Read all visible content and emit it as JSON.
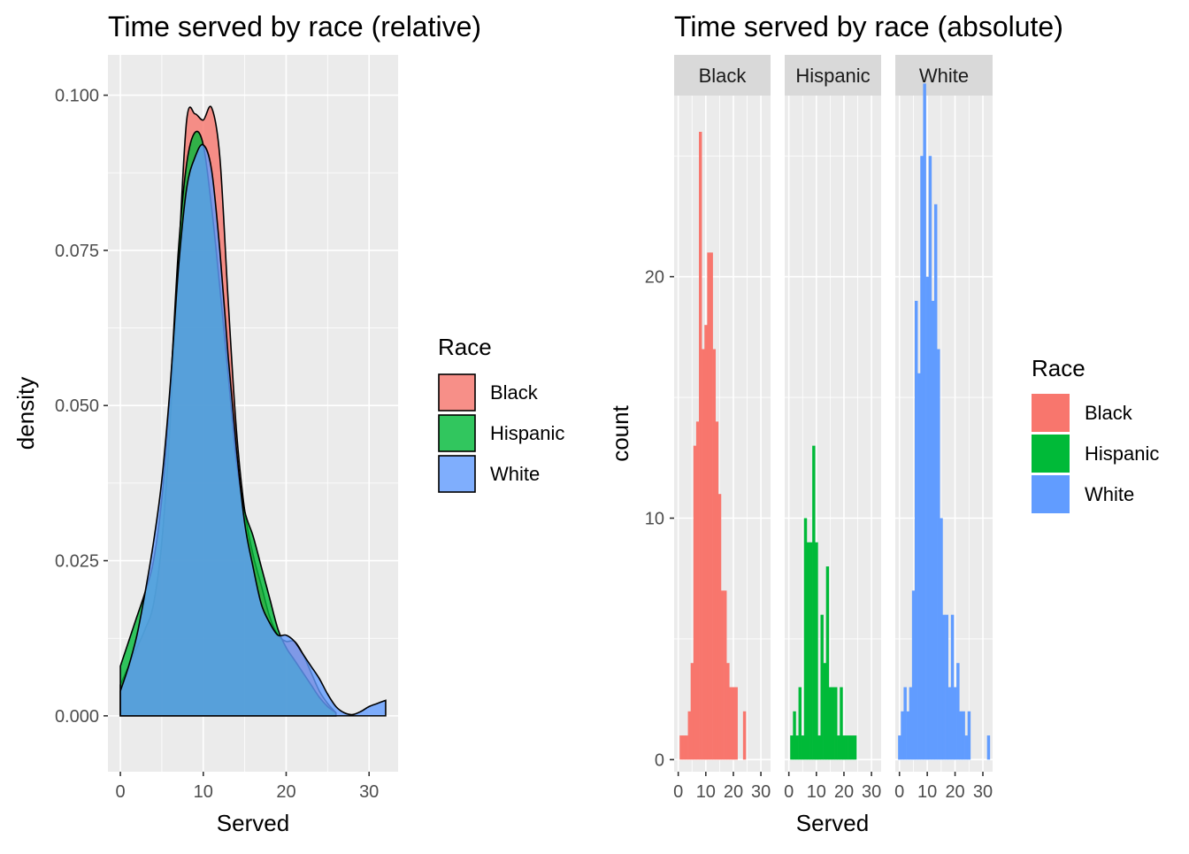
{
  "colors": {
    "Black": "#F8766D",
    "Hispanic": "#00BA38",
    "White": "#619CFF"
  },
  "chart_data": [
    {
      "type": "area",
      "title": "Time served by race (relative)",
      "xlabel": "Served",
      "ylabel": "density",
      "xlim": [
        -1.5,
        33.5
      ],
      "ylim": [
        -0.009,
        0.1065
      ],
      "x_ticks": [
        0,
        10,
        20,
        30
      ],
      "x_tick_labels": [
        "0",
        "10",
        "20",
        "30"
      ],
      "y_ticks": [
        0,
        0.025,
        0.05,
        0.075,
        0.1
      ],
      "y_tick_labels": [
        "0.000",
        "0.025",
        "0.050",
        "0.075",
        "0.100"
      ],
      "grid": true,
      "legend": {
        "title": "Race",
        "position": "right",
        "entries": [
          "Black",
          "Hispanic",
          "White"
        ]
      },
      "series": [
        {
          "name": "Black",
          "x": [
            0,
            1,
            2,
            3,
            4,
            5,
            6,
            7,
            8,
            9,
            10,
            11,
            12,
            13,
            14,
            15,
            16,
            17,
            18,
            19,
            20,
            21,
            22,
            23,
            24,
            25,
            26
          ],
          "y": [
            0.005,
            0.008,
            0.011,
            0.014,
            0.018,
            0.028,
            0.047,
            0.073,
            0.096,
            0.097,
            0.096,
            0.098,
            0.09,
            0.067,
            0.046,
            0.033,
            0.026,
            0.021,
            0.016,
            0.013,
            0.012,
            0.012,
            0.01,
            0.007,
            0.004,
            0.002,
            0.0005
          ]
        },
        {
          "name": "Hispanic",
          "x": [
            0,
            1,
            2,
            3,
            4,
            5,
            6,
            7,
            8,
            9,
            10,
            11,
            12,
            13,
            14,
            15,
            16,
            17,
            18,
            19,
            20,
            21,
            22,
            23,
            24,
            25,
            26
          ],
          "y": [
            0.008,
            0.012,
            0.016,
            0.02,
            0.025,
            0.035,
            0.052,
            0.075,
            0.089,
            0.094,
            0.092,
            0.082,
            0.069,
            0.055,
            0.041,
            0.033,
            0.029,
            0.024,
            0.019,
            0.014,
            0.011,
            0.009,
            0.007,
            0.005,
            0.003,
            0.0015,
            0.0005
          ]
        },
        {
          "name": "White",
          "x": [
            0,
            1,
            2,
            3,
            4,
            5,
            6,
            7,
            8,
            9,
            10,
            11,
            12,
            13,
            14,
            15,
            16,
            17,
            18,
            19,
            20,
            21,
            22,
            23,
            24,
            25,
            26,
            27,
            28,
            29,
            30,
            31,
            32
          ],
          "y": [
            0.004,
            0.008,
            0.013,
            0.02,
            0.028,
            0.038,
            0.053,
            0.072,
            0.085,
            0.09,
            0.092,
            0.088,
            0.075,
            0.058,
            0.043,
            0.031,
            0.024,
            0.018,
            0.015,
            0.013,
            0.013,
            0.012,
            0.01,
            0.008,
            0.006,
            0.0035,
            0.0015,
            0.0005,
            0.0002,
            0.0007,
            0.0015,
            0.002,
            0.0025
          ]
        }
      ]
    },
    {
      "type": "bar",
      "title": "Time served by race (absolute)",
      "xlabel": "Served",
      "ylabel": "count",
      "xlim": [
        -1.5,
        33.5
      ],
      "ylim": [
        -0.5,
        27.5
      ],
      "x_ticks": [
        0,
        10,
        20,
        30
      ],
      "x_tick_labels": [
        "0",
        "10",
        "20",
        "30"
      ],
      "y_ticks": [
        0,
        10,
        20
      ],
      "y_tick_labels": [
        "0",
        "10",
        "20"
      ],
      "grid": true,
      "facets": [
        "Black",
        "Hispanic",
        "White"
      ],
      "legend": {
        "title": "Race",
        "position": "right",
        "entries": [
          "Black",
          "Hispanic",
          "White"
        ]
      },
      "series": [
        {
          "name": "Black",
          "x": [
            1,
            2,
            3,
            4,
            5,
            6,
            7,
            8,
            9,
            10,
            11,
            12,
            13,
            14,
            15,
            16,
            17,
            18,
            19,
            20,
            21,
            22,
            23,
            24
          ],
          "values": [
            1,
            1,
            1,
            2,
            4,
            13,
            14,
            26,
            17,
            18,
            21,
            21,
            17,
            14,
            11,
            7,
            7,
            4,
            3,
            3,
            3,
            0,
            0,
            2
          ]
        },
        {
          "name": "Hispanic",
          "x": [
            1,
            2,
            3,
            4,
            5,
            6,
            7,
            8,
            9,
            10,
            11,
            12,
            13,
            14,
            15,
            16,
            17,
            18,
            19,
            20,
            21,
            22,
            23,
            24
          ],
          "values": [
            1,
            2,
            1,
            3,
            1,
            10,
            9,
            9,
            13,
            9,
            1,
            6,
            4,
            8,
            3,
            3,
            3,
            1,
            3,
            1,
            1,
            1,
            1,
            1
          ]
        },
        {
          "name": "White",
          "x": [
            0,
            1,
            2,
            3,
            4,
            5,
            6,
            7,
            8,
            9,
            10,
            11,
            12,
            13,
            14,
            15,
            16,
            17,
            18,
            19,
            20,
            21,
            22,
            23,
            24,
            25,
            26,
            27,
            28,
            29,
            30,
            31,
            32
          ],
          "values": [
            1,
            2,
            3,
            2,
            3,
            7,
            19,
            16,
            25,
            28,
            20,
            25,
            19,
            23,
            17,
            10,
            6,
            6,
            3,
            6,
            3,
            4,
            2,
            2,
            1,
            2,
            0,
            0,
            0,
            0,
            0,
            0,
            1
          ]
        }
      ]
    }
  ]
}
